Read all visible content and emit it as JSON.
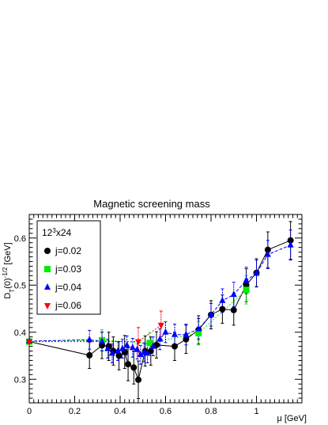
{
  "chart_data": {
    "type": "scatter",
    "title": "Magnetic screening mass",
    "xlabel": "μ [GeV]",
    "ylabel_main": "D",
    "ylabel_sub": "T",
    "ylabel_rest": "(0)",
    "ylabel_exp": "-1/2",
    "ylabel_unit": " [GeV]",
    "xlim": [
      0,
      1.2
    ],
    "ylim": [
      0.25,
      0.65
    ],
    "x_ticks": [
      {
        "value": 0,
        "label": "0"
      },
      {
        "value": 0.2,
        "label": "0.2"
      },
      {
        "value": 0.4,
        "label": "0.4"
      },
      {
        "value": 0.6,
        "label": "0.6"
      },
      {
        "value": 0.8,
        "label": "0.8"
      },
      {
        "value": 1.0,
        "label": "1"
      }
    ],
    "y_ticks": [
      {
        "value": 0.3,
        "label": "0.3"
      },
      {
        "value": 0.4,
        "label": "0.4"
      },
      {
        "value": 0.5,
        "label": "0.5"
      },
      {
        "value": 0.6,
        "label": "0.6"
      }
    ],
    "legend": {
      "header_base": "12",
      "header_exp": "3",
      "header_rest": "x24",
      "placement": "top-left"
    },
    "series": [
      {
        "name": "j=0.02",
        "color": "#000000",
        "marker": "circle",
        "line": "solid",
        "points": [
          {
            "x": 0.0,
            "y": 0.38,
            "err": 0.005
          },
          {
            "x": 0.265,
            "y": 0.351,
            "err": 0.028
          },
          {
            "x": 0.32,
            "y": 0.372,
            "err": 0.028
          },
          {
            "x": 0.35,
            "y": 0.37,
            "err": 0.03
          },
          {
            "x": 0.37,
            "y": 0.36,
            "err": 0.03
          },
          {
            "x": 0.395,
            "y": 0.35,
            "err": 0.03
          },
          {
            "x": 0.42,
            "y": 0.358,
            "err": 0.035
          },
          {
            "x": 0.435,
            "y": 0.332,
            "err": 0.035
          },
          {
            "x": 0.46,
            "y": 0.325,
            "err": 0.035
          },
          {
            "x": 0.48,
            "y": 0.299,
            "err": 0.04
          },
          {
            "x": 0.51,
            "y": 0.36,
            "err": 0.032
          },
          {
            "x": 0.535,
            "y": 0.36,
            "err": 0.03
          },
          {
            "x": 0.56,
            "y": 0.373,
            "err": 0.028
          },
          {
            "x": 0.64,
            "y": 0.37,
            "err": 0.03
          },
          {
            "x": 0.69,
            "y": 0.385,
            "err": 0.03
          },
          {
            "x": 0.745,
            "y": 0.405,
            "err": 0.03
          },
          {
            "x": 0.8,
            "y": 0.437,
            "err": 0.03
          },
          {
            "x": 0.85,
            "y": 0.449,
            "err": 0.03
          },
          {
            "x": 0.9,
            "y": 0.447,
            "err": 0.032
          },
          {
            "x": 0.955,
            "y": 0.5,
            "err": 0.035
          },
          {
            "x": 1.0,
            "y": 0.526,
            "err": 0.03
          },
          {
            "x": 1.05,
            "y": 0.575,
            "err": 0.038
          },
          {
            "x": 1.15,
            "y": 0.595,
            "err": 0.04
          }
        ]
      },
      {
        "name": "j=0.03",
        "color": "#00ee00",
        "marker": "square",
        "line": "dotted",
        "points": [
          {
            "x": 0.0,
            "y": 0.38,
            "err": 0.004
          },
          {
            "x": 0.32,
            "y": 0.383,
            "err": 0.022
          },
          {
            "x": 0.53,
            "y": 0.377,
            "err": 0.022
          },
          {
            "x": 0.745,
            "y": 0.398,
            "err": 0.025
          },
          {
            "x": 0.955,
            "y": 0.49,
            "err": 0.03
          }
        ]
      },
      {
        "name": "j=0.04",
        "color": "#0000ff",
        "marker": "triangle-up",
        "line": "dashed",
        "points": [
          {
            "x": 0.0,
            "y": 0.381,
            "err": 0.004
          },
          {
            "x": 0.265,
            "y": 0.384,
            "err": 0.02
          },
          {
            "x": 0.32,
            "y": 0.38,
            "err": 0.02
          },
          {
            "x": 0.345,
            "y": 0.365,
            "err": 0.02
          },
          {
            "x": 0.365,
            "y": 0.355,
            "err": 0.02
          },
          {
            "x": 0.39,
            "y": 0.36,
            "err": 0.02
          },
          {
            "x": 0.41,
            "y": 0.365,
            "err": 0.02
          },
          {
            "x": 0.43,
            "y": 0.372,
            "err": 0.02
          },
          {
            "x": 0.455,
            "y": 0.367,
            "err": 0.02
          },
          {
            "x": 0.475,
            "y": 0.363,
            "err": 0.02
          },
          {
            "x": 0.49,
            "y": 0.352,
            "err": 0.02
          },
          {
            "x": 0.505,
            "y": 0.357,
            "err": 0.02
          },
          {
            "x": 0.52,
            "y": 0.355,
            "err": 0.02
          },
          {
            "x": 0.545,
            "y": 0.37,
            "err": 0.02
          },
          {
            "x": 0.575,
            "y": 0.385,
            "err": 0.022
          },
          {
            "x": 0.6,
            "y": 0.4,
            "err": 0.022
          },
          {
            "x": 0.64,
            "y": 0.395,
            "err": 0.022
          },
          {
            "x": 0.69,
            "y": 0.395,
            "err": 0.022
          },
          {
            "x": 0.745,
            "y": 0.407,
            "err": 0.022
          },
          {
            "x": 0.8,
            "y": 0.437,
            "err": 0.024
          },
          {
            "x": 0.85,
            "y": 0.467,
            "err": 0.025
          },
          {
            "x": 0.9,
            "y": 0.48,
            "err": 0.026
          },
          {
            "x": 0.955,
            "y": 0.51,
            "err": 0.028
          },
          {
            "x": 1.0,
            "y": 0.525,
            "err": 0.028
          },
          {
            "x": 1.05,
            "y": 0.565,
            "err": 0.03
          },
          {
            "x": 1.15,
            "y": 0.585,
            "err": 0.032
          }
        ]
      },
      {
        "name": "j=0.06",
        "color": "#ff0000",
        "marker": "triangle-down",
        "line": "dotted",
        "points": [
          {
            "x": 0.0,
            "y": 0.38,
            "err": 0.004
          },
          {
            "x": 0.48,
            "y": 0.38,
            "err": 0.03
          },
          {
            "x": 0.58,
            "y": 0.415,
            "err": 0.03
          }
        ]
      }
    ]
  }
}
